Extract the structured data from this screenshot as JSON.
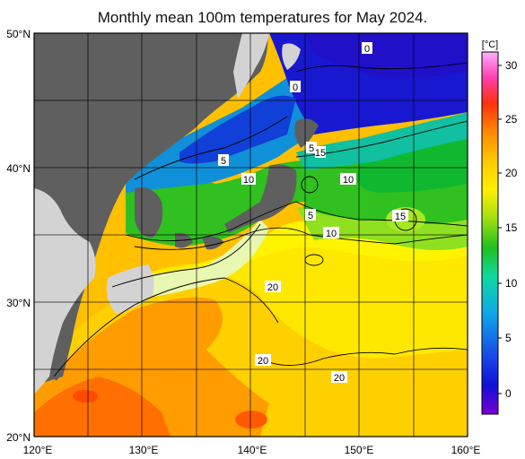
{
  "title": "Monthly mean 100m temperatures for May 2024.",
  "map": {
    "lat_labels": [
      "50°N",
      "40°N",
      "30°N",
      "20°N"
    ],
    "lon_labels": [
      "120°E",
      "130°E",
      "140°E",
      "150°E",
      "160°E"
    ],
    "lat_range": [
      20,
      50
    ],
    "lon_range": [
      120,
      160
    ],
    "grid_step_deg": 5,
    "contour_labels": [
      "0",
      "0",
      "5",
      "5",
      "5",
      "10",
      "10",
      "10",
      "15",
      "15",
      "20",
      "20",
      "20"
    ]
  },
  "colorbar": {
    "unit": "[°C]",
    "ticks": [
      "30",
      "25",
      "20",
      "15",
      "10",
      "5",
      "0"
    ],
    "range": [
      -2,
      32
    ],
    "colors": [
      "#7a00d0",
      "#1010d8",
      "#1848e8",
      "#0fa8e8",
      "#10d8a0",
      "#20c020",
      "#a0e010",
      "#fff000",
      "#ffc800",
      "#ff8800",
      "#ff3010",
      "#ff40b0",
      "#ffb0ff"
    ]
  },
  "colors": {
    "land": "#5f5f5f",
    "land_other": "#d3d3d3",
    "frame": "#000000"
  }
}
